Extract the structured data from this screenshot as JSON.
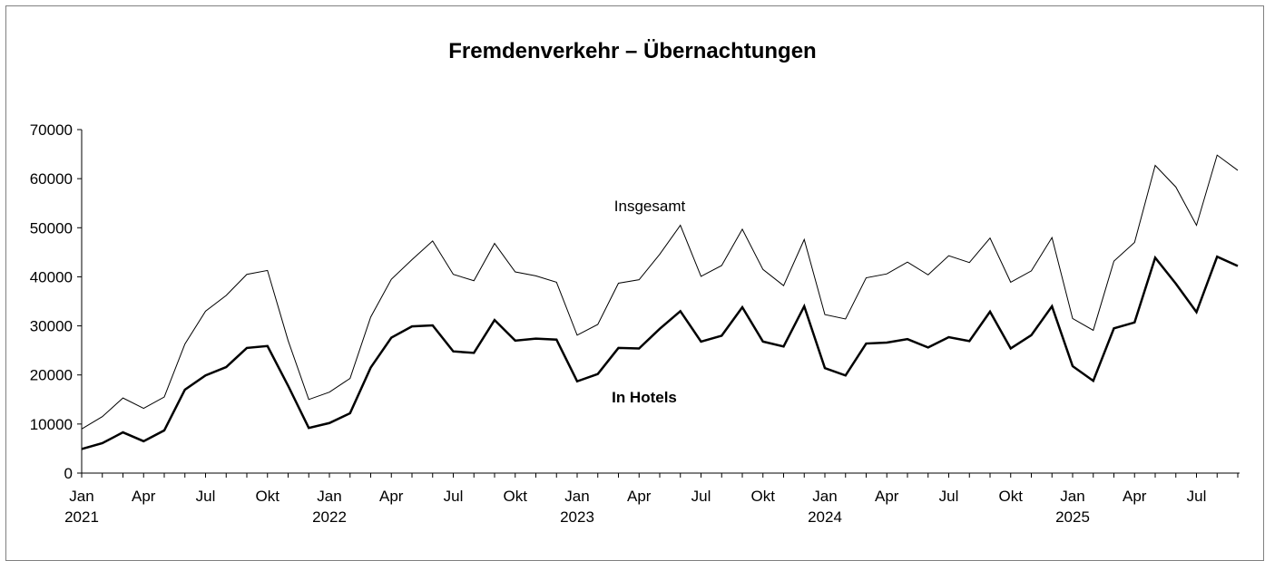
{
  "chart_data": {
    "type": "line",
    "title": "Fremdenverkehr – Übernachtungen",
    "categories": [
      "Jan",
      null,
      null,
      "Apr",
      null,
      null,
      "Jul",
      null,
      null,
      "Okt",
      null,
      null,
      "Jan",
      null,
      null,
      "Apr",
      null,
      null,
      "Jul",
      null,
      null,
      "Okt",
      null,
      null,
      "Jan",
      null,
      null,
      "Apr",
      null,
      null,
      "Jul",
      null,
      null,
      "Okt",
      null,
      null,
      "Jan",
      null,
      null,
      "Apr",
      null,
      null,
      "Jul",
      null,
      null,
      "Okt",
      null,
      null,
      "Jan",
      null,
      null,
      "Apr",
      null,
      null,
      "Jul",
      null,
      null
    ],
    "years": [
      "2021",
      null,
      null,
      null,
      null,
      null,
      null,
      null,
      null,
      null,
      null,
      null,
      "2022",
      null,
      null,
      null,
      null,
      null,
      null,
      null,
      null,
      null,
      null,
      null,
      "2023",
      null,
      null,
      null,
      null,
      null,
      null,
      null,
      null,
      null,
      null,
      null,
      "2024",
      null,
      null,
      null,
      null,
      null,
      null,
      null,
      null,
      null,
      null,
      null,
      "2025",
      null,
      null,
      null,
      null,
      null,
      null,
      null,
      null
    ],
    "series": [
      {
        "name": "Insgesamt",
        "color": "#000000",
        "line_width": 1,
        "values": [
          9000,
          11500,
          15300,
          13200,
          15500,
          26300,
          33000,
          36200,
          40500,
          41300,
          27000,
          15000,
          16500,
          19300,
          31800,
          39500,
          43500,
          47300,
          40500,
          39200,
          46800,
          41000,
          40200,
          38900,
          28100,
          30300,
          38700,
          39400,
          44600,
          50500,
          40100,
          42300,
          49700,
          41500,
          38200,
          47600,
          32300,
          31400,
          39800,
          40600,
          43000,
          40400,
          44300,
          42900,
          47900,
          38900,
          41200,
          48000,
          31500,
          29100,
          43200,
          47000,
          62700,
          58300,
          50500,
          64800,
          61700
        ]
      },
      {
        "name": "In Hotels",
        "color": "#000000",
        "line_width": 2.5,
        "values": [
          4900,
          6100,
          8300,
          6500,
          8700,
          17000,
          19900,
          21600,
          25500,
          25900,
          17800,
          9200,
          10200,
          12200,
          21500,
          27600,
          29900,
          30100,
          24800,
          24500,
          31200,
          27000,
          27400,
          27200,
          18700,
          20200,
          25500,
          25400,
          29400,
          33000,
          26800,
          28000,
          33800,
          26800,
          25800,
          34000,
          21400,
          19900,
          26400,
          26600,
          27300,
          25600,
          27700,
          26900,
          32900,
          25400,
          28100,
          34000,
          21800,
          18800,
          29500,
          30700,
          43900,
          38600,
          32800,
          44100,
          42200
        ]
      }
    ],
    "ylim": [
      0,
      70000
    ],
    "yticks": [
      0,
      10000,
      20000,
      30000,
      40000,
      50000,
      60000,
      70000
    ],
    "grid": false
  }
}
